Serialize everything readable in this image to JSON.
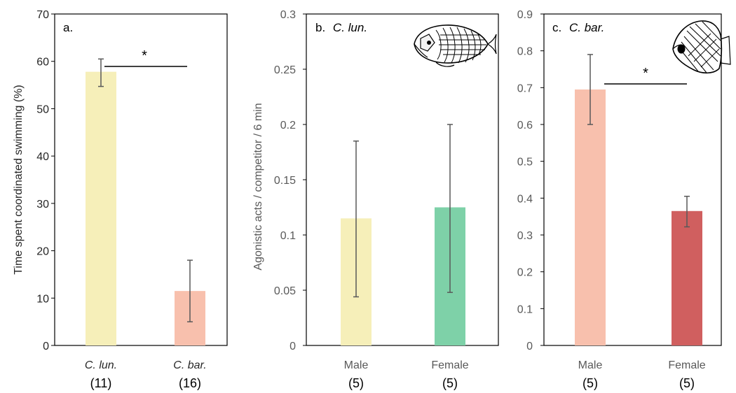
{
  "chart_data": [
    {
      "type": "bar",
      "panel_label": "a.",
      "ylabel": "Time spent coordinated swimming  (%)",
      "ylim": [
        0,
        70
      ],
      "yticks": [
        "0",
        "10",
        "20",
        "30",
        "40",
        "50",
        "60",
        "70"
      ],
      "categories": [
        "C. lun.",
        "C. bar."
      ],
      "sample_sizes": [
        "(11)",
        "(16)"
      ],
      "values": [
        57.8,
        11.5
      ],
      "error_low": [
        54.7,
        5.0
      ],
      "error_high": [
        60.5,
        18.0
      ],
      "bar_colors": [
        "#f6efb9",
        "#f8c0ad"
      ],
      "significance": "*",
      "grid": false
    },
    {
      "type": "bar",
      "panel_label": "b.",
      "panel_species": "C. lun.",
      "ylabel": "Agonistic acts / competitor / 6 min",
      "ylim": [
        0,
        0.3
      ],
      "yticks": [
        "0",
        "0.05",
        "0.1",
        "0.15",
        "0.2",
        "0.25",
        "0.3"
      ],
      "categories": [
        "Male",
        "Female"
      ],
      "sample_sizes": [
        "(5)",
        "(5)"
      ],
      "values": [
        0.115,
        0.125
      ],
      "error_low": [
        0.044,
        0.048
      ],
      "error_high": [
        0.185,
        0.2
      ],
      "bar_colors": [
        "#f6efb9",
        "#7ed1a8"
      ],
      "grid": false
    },
    {
      "type": "bar",
      "panel_label": "c.",
      "panel_species": "C. bar.",
      "ylim": [
        0,
        0.9
      ],
      "yticks": [
        "0",
        "0.1",
        "0.2",
        "0.3",
        "0.4",
        "0.5",
        "0.6",
        "0.7",
        "0.8",
        "0.9"
      ],
      "categories": [
        "Male",
        "Female"
      ],
      "sample_sizes": [
        "(5)",
        "(5)"
      ],
      "values": [
        0.695,
        0.365
      ],
      "error_low": [
        0.6,
        0.322
      ],
      "error_high": [
        0.79,
        0.405
      ],
      "bar_colors": [
        "#f8c0ad",
        "#d05f5f"
      ],
      "significance": "*",
      "grid": false
    }
  ],
  "colors": {
    "axis": "#000000",
    "error_bar": "#595959",
    "fish_outline": "#000000"
  },
  "icons": [
    "fish-icon-c-lun",
    "fish-icon-c-bar"
  ]
}
